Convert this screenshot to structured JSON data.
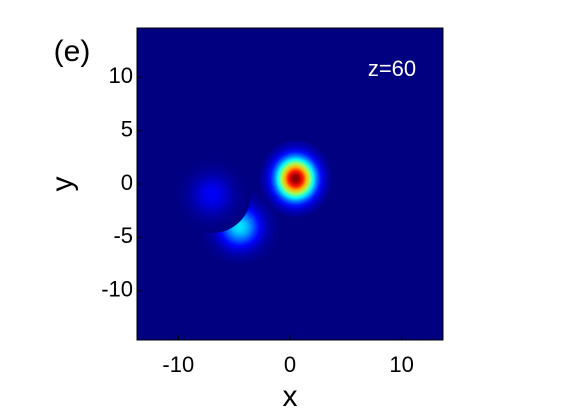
{
  "chart_data": {
    "type": "heatmap",
    "panel_label": "(e)",
    "annotation": "z=60",
    "xlabel": "x",
    "ylabel": "y",
    "x": [
      0.5,
      -4.5,
      -7
    ],
    "y": [
      0.5,
      -4,
      -1
    ],
    "values": [
      1,
      0.35,
      0.12
    ],
    "xlim": [
      -13.7,
      13.7
    ],
    "ylim": [
      -14.6,
      14.6
    ],
    "xticks": [
      -10,
      0,
      10
    ],
    "yticks": [
      -10,
      -5,
      0,
      5,
      10
    ],
    "colormap": "jet"
  }
}
